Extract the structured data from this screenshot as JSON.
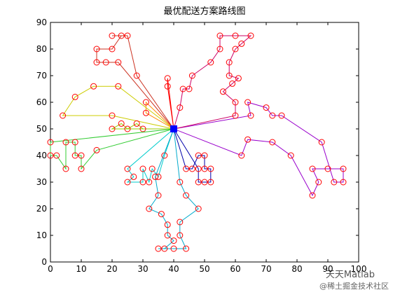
{
  "chart_data": {
    "type": "line",
    "title": "最优配送方案路线图",
    "xlim": [
      0,
      100
    ],
    "xticks": [
      0,
      10,
      20,
      30,
      40,
      50,
      60,
      70,
      80,
      90,
      100
    ],
    "ylim": [
      0,
      90
    ],
    "yticks": [
      0,
      10,
      20,
      30,
      40,
      50,
      60,
      70,
      80,
      90
    ],
    "depot": {
      "x": 40,
      "y": 50,
      "color": "#0000ff"
    },
    "marker_color": "#ff0000",
    "series": [
      {
        "color": "#ff0000",
        "x": [
          40,
          38,
          38,
          40
        ],
        "y": [
          50,
          66,
          69,
          50
        ]
      },
      {
        "color": "#cc3322",
        "x": [
          40,
          28,
          25,
          20,
          23,
          20,
          15,
          15,
          18,
          22,
          40
        ],
        "y": [
          50,
          70,
          85,
          85,
          85,
          80,
          80,
          75,
          75,
          75,
          50
        ]
      },
      {
        "color": "#ff8800",
        "x": [
          40,
          31,
          31,
          40
        ],
        "y": [
          50,
          60,
          56,
          50
        ]
      },
      {
        "color": "#cccc00",
        "x": [
          40,
          22,
          14,
          8,
          4,
          20,
          40
        ],
        "y": [
          50,
          66,
          66,
          62,
          55,
          55,
          50
        ]
      },
      {
        "color": "#99cc00",
        "x": [
          40,
          30,
          28,
          25,
          23,
          20,
          40
        ],
        "y": [
          50,
          50,
          52,
          50,
          52,
          50,
          50
        ]
      },
      {
        "color": "#33cc33",
        "x": [
          40,
          0,
          0,
          2,
          5,
          5,
          8,
          8,
          10,
          10,
          15,
          40
        ],
        "y": [
          50,
          45,
          40,
          40,
          35,
          45,
          45,
          40,
          40,
          35,
          42,
          50
        ]
      },
      {
        "color": "#00cccc",
        "x": [
          40,
          37,
          35,
          33,
          32,
          30,
          30,
          25,
          27,
          25,
          40
        ],
        "y": [
          50,
          40,
          32,
          35,
          30,
          35,
          30,
          30,
          32,
          35,
          50
        ]
      },
      {
        "color": "#00aacc",
        "x": [
          40,
          34,
          35,
          32,
          36,
          38,
          38,
          40,
          37,
          35,
          40,
          44,
          42,
          42,
          48,
          44,
          42,
          40
        ],
        "y": [
          50,
          32,
          25,
          20,
          18,
          14,
          10,
          8,
          5,
          5,
          5,
          5,
          10,
          15,
          20,
          25,
          30,
          50
        ]
      },
      {
        "color": "#0000aa",
        "x": [
          40,
          44,
          46,
          48,
          50,
          50,
          52,
          52,
          50,
          48,
          48,
          40
        ],
        "y": [
          50,
          35,
          35,
          40,
          40,
          35,
          35,
          30,
          30,
          30,
          35,
          50
        ]
      },
      {
        "color": "#9900cc",
        "x": [
          40,
          62,
          64,
          72,
          78,
          85,
          87,
          85,
          90,
          95,
          95,
          92,
          88,
          75,
          72,
          70,
          64,
          65,
          40
        ],
        "y": [
          50,
          40,
          46,
          45,
          40,
          25,
          30,
          35,
          35,
          35,
          30,
          30,
          45,
          55,
          55,
          58,
          60,
          55,
          50
        ]
      },
      {
        "color": "#cc0066",
        "x": [
          40,
          42,
          43,
          45,
          46,
          52,
          55,
          55,
          60,
          65,
          62,
          60,
          58,
          58,
          61,
          59,
          56,
          60,
          60,
          40
        ],
        "y": [
          50,
          58,
          65,
          65,
          70,
          75,
          80,
          85,
          85,
          85,
          82,
          80,
          75,
          70,
          69,
          67,
          64,
          60,
          55,
          50
        ]
      }
    ]
  },
  "watermark": {
    "brand": "天天Matlab",
    "source": "@稀土掘金技术社区"
  }
}
